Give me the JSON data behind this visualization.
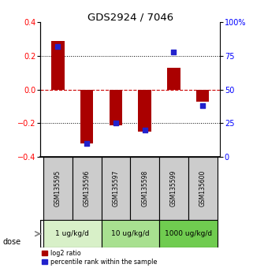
{
  "title": "GDS2924 / 7046",
  "samples": [
    "GSM135595",
    "GSM135596",
    "GSM135597",
    "GSM135598",
    "GSM135599",
    "GSM135600"
  ],
  "log2_ratio": [
    0.29,
    -0.32,
    -0.21,
    -0.25,
    0.13,
    -0.07
  ],
  "percentile_rank": [
    82,
    10,
    25,
    20,
    78,
    38
  ],
  "dose_groups": [
    {
      "label": "1 ug/kg/d",
      "span": [
        0,
        2
      ],
      "color": "#d8f0c8"
    },
    {
      "label": "10 ug/kg/d",
      "span": [
        2,
        4
      ],
      "color": "#a8e090"
    },
    {
      "label": "1000 ug/kg/d",
      "span": [
        4,
        6
      ],
      "color": "#70cc50"
    }
  ],
  "ylim_left": [
    -0.4,
    0.4
  ],
  "ylim_right": [
    0,
    100
  ],
  "yticks_left": [
    -0.4,
    -0.2,
    0.0,
    0.2,
    0.4
  ],
  "yticks_right": [
    0,
    25,
    50,
    75,
    100
  ],
  "ytick_labels_right": [
    "0",
    "25",
    "50",
    "75",
    "100%"
  ],
  "bar_color_red": "#aa0000",
  "bar_color_blue": "#2222cc",
  "hline_color": "#cc0000",
  "sample_box_color": "#cccccc",
  "dose_label": "dose",
  "legend_red": "log2 ratio",
  "legend_blue": "percentile rank within the sample",
  "bar_width": 0.45
}
